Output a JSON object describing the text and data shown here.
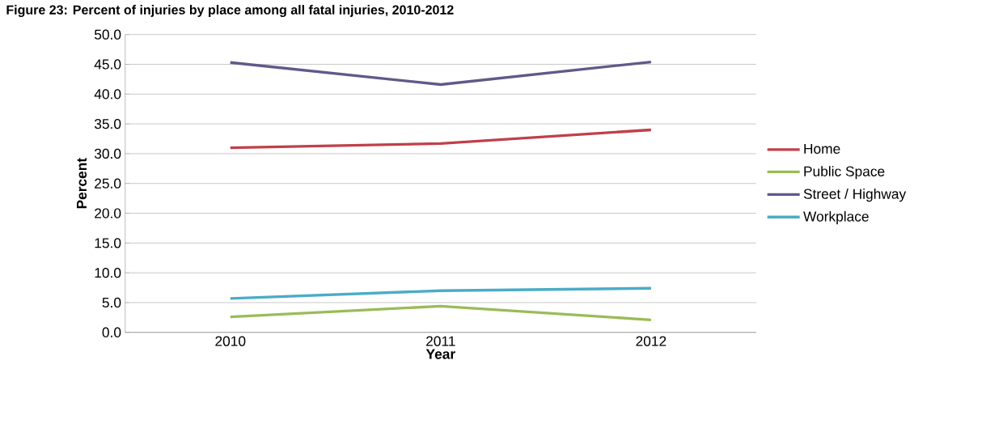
{
  "chart_data": {
    "type": "line",
    "title": "Figure 23: Percent of injuries by place among all fatal injuries, 2010-2012",
    "xlabel": "Year",
    "ylabel": "Percent",
    "categories": [
      "2010",
      "2011",
      "2012"
    ],
    "series": [
      {
        "name": "Home",
        "color": "#c0404a",
        "values": [
          31.0,
          31.7,
          34.0
        ]
      },
      {
        "name": "Public Space",
        "color": "#9bbb59",
        "values": [
          2.6,
          4.4,
          2.1
        ]
      },
      {
        "name": "Street / Highway",
        "color": "#5f5a8a",
        "values": [
          45.3,
          41.6,
          45.4
        ]
      },
      {
        "name": "Workplace",
        "color": "#4bacc6",
        "values": [
          5.7,
          7.0,
          7.4
        ]
      }
    ],
    "ylim": [
      0,
      50
    ],
    "yticks": [
      {
        "value": 0,
        "label": "0.0"
      },
      {
        "value": 5,
        "label": "5.0"
      },
      {
        "value": 10,
        "label": "10.0"
      },
      {
        "value": 15,
        "label": "15.0"
      },
      {
        "value": 20,
        "label": "20.0"
      },
      {
        "value": 25,
        "label": "25.0"
      },
      {
        "value": 30,
        "label": "30.0"
      },
      {
        "value": 35,
        "label": "35.0"
      },
      {
        "value": 40,
        "label": "40.0"
      },
      {
        "value": 45,
        "label": "45.0"
      },
      {
        "value": 50,
        "label": "50.0"
      }
    ],
    "grid": "y",
    "legend": "right",
    "marker": "none",
    "line_style": "solid"
  }
}
